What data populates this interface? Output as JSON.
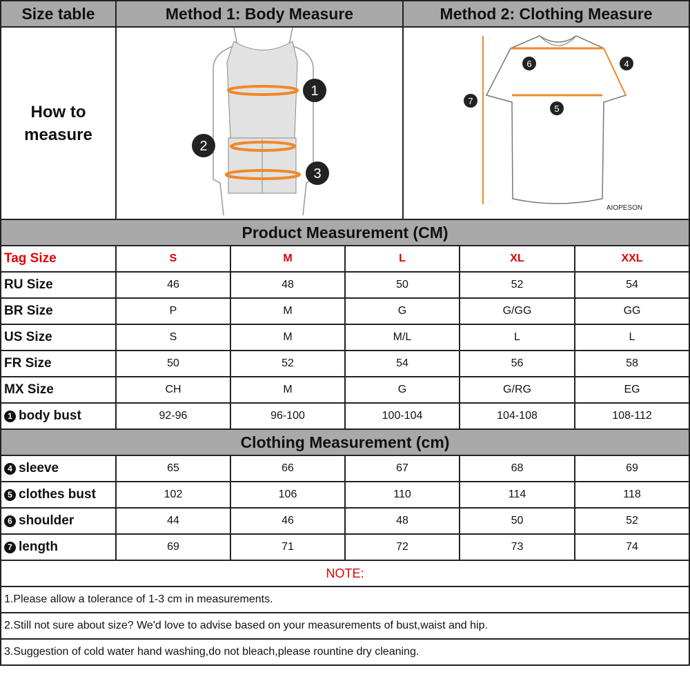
{
  "header": {
    "size_table": "Size table",
    "method1": "Method 1: Body  Measure",
    "method2": "Method 2: Clothing Measure"
  },
  "how_to": {
    "line1": "How to",
    "line2": "measure",
    "body_markers": [
      "1",
      "2",
      "3"
    ],
    "shirt_markers": [
      "4",
      "5",
      "6",
      "7"
    ],
    "brand": "AIOPESON"
  },
  "colors": {
    "header_bg": "#a9a9a9",
    "accent_red": "#e00000",
    "measure_orange": "#f0882a"
  },
  "product": {
    "title": "Product Measurement (CM)",
    "tag_row": {
      "label": "Tag Size",
      "values": [
        "S",
        "M",
        "L",
        "XL",
        "XXL"
      ]
    },
    "rows": [
      {
        "label": "RU Size",
        "values": [
          "46",
          "48",
          "50",
          "52",
          "54"
        ]
      },
      {
        "label": "BR Size",
        "values": [
          "P",
          "M",
          "G",
          "G/GG",
          "GG"
        ]
      },
      {
        "label": "US Size",
        "values": [
          "S",
          "M",
          "M/L",
          "L",
          "L"
        ]
      },
      {
        "label": "FR Size",
        "values": [
          "50",
          "52",
          "54",
          "56",
          "58"
        ]
      },
      {
        "label": "MX Size",
        "values": [
          "CH",
          "M",
          "G",
          "G/RG",
          "EG"
        ]
      },
      {
        "marker": "1",
        "label": "body bust",
        "values": [
          "92-96",
          "96-100",
          "100-104",
          "104-108",
          "108-112"
        ]
      }
    ]
  },
  "clothing": {
    "title": "Clothing Measurement (cm)",
    "rows": [
      {
        "marker": "4",
        "label": "sleeve",
        "values": [
          "65",
          "66",
          "67",
          "68",
          "69"
        ]
      },
      {
        "marker": "5",
        "label": "clothes bust",
        "values": [
          "102",
          "106",
          "110",
          "114",
          "118"
        ]
      },
      {
        "marker": "6",
        "label": "shoulder",
        "values": [
          "44",
          "46",
          "48",
          "50",
          "52"
        ]
      },
      {
        "marker": "7",
        "label": "length",
        "values": [
          "69",
          "71",
          "72",
          "73",
          "74"
        ]
      }
    ]
  },
  "notes": {
    "title": "NOTE:",
    "items": [
      "1.Please allow a tolerance of 1-3 cm in measurements.",
      "2.Still not sure about size? We'd love to advise based on your measurements of bust,waist and hip.",
      "3.Suggestion of cold water hand washing,do not bleach,please rountine dry cleaning."
    ]
  }
}
